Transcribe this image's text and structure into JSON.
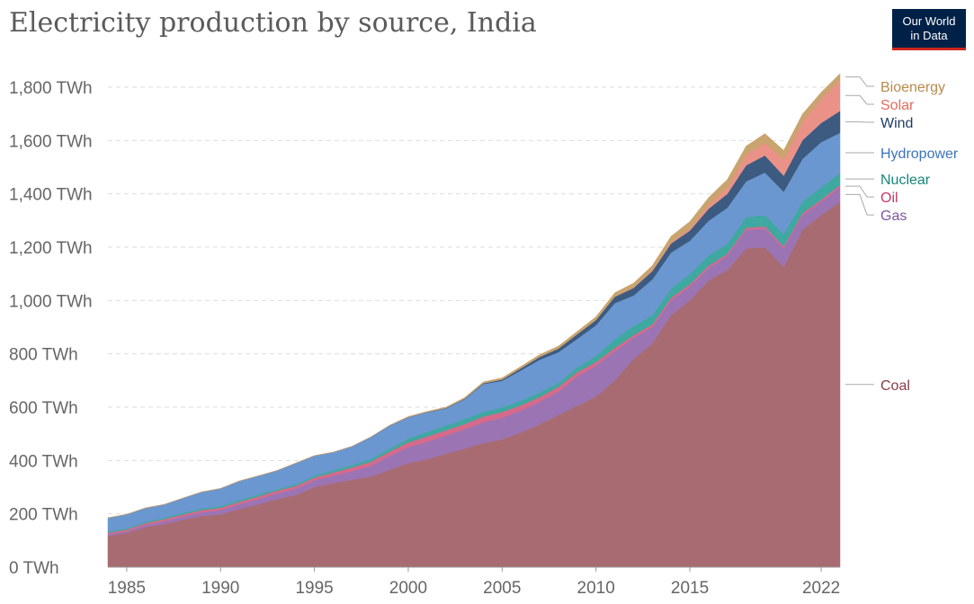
{
  "title": "Electricity production by source, India",
  "logo": {
    "line1": "Our World",
    "line2": "in Data"
  },
  "chart_data": {
    "type": "area",
    "stacked": true,
    "title": "Electricity production by source, India",
    "xlim": [
      1984,
      2023
    ],
    "ylim": [
      0,
      1800
    ],
    "y_unit": "TWh",
    "x_ticks": [
      1985,
      1990,
      1995,
      2000,
      2005,
      2010,
      2015,
      2022
    ],
    "y_ticks": [
      {
        "value": 0,
        "label": "0 TWh"
      },
      {
        "value": 200,
        "label": "200 TWh"
      },
      {
        "value": 400,
        "label": "400 TWh"
      },
      {
        "value": 600,
        "label": "600 TWh"
      },
      {
        "value": 800,
        "label": "800 TWh"
      },
      {
        "value": 1000,
        "label": "1,000 TWh"
      },
      {
        "value": 1200,
        "label": "1,200 TWh"
      },
      {
        "value": 1400,
        "label": "1,400 TWh"
      },
      {
        "value": 1600,
        "label": "1,600 TWh"
      },
      {
        "value": 1800,
        "label": "1,800 TWh"
      }
    ],
    "grid": true,
    "legend_placement": "right",
    "x": [
      1984,
      1985,
      1986,
      1987,
      1988,
      1989,
      1990,
      1991,
      1992,
      1993,
      1994,
      1995,
      1996,
      1997,
      1998,
      1999,
      2000,
      2001,
      2002,
      2003,
      2004,
      2005,
      2006,
      2007,
      2008,
      2009,
      2010,
      2011,
      2012,
      2013,
      2014,
      2015,
      2016,
      2017,
      2018,
      2019,
      2020,
      2021,
      2022,
      2023
    ],
    "series": [
      {
        "name": "Coal",
        "color": "#a86b72",
        "values": [
          118,
          128,
          150,
          162,
          178,
          192,
          198,
          218,
          235,
          255,
          270,
          300,
          315,
          328,
          340,
          365,
          390,
          405,
          425,
          445,
          465,
          480,
          505,
          535,
          570,
          605,
          640,
          700,
          780,
          840,
          945,
          1000,
          1075,
          1115,
          1195,
          1200,
          1125,
          1265,
          1320,
          1370
        ]
      },
      {
        "name": "Gas",
        "color": "#9b74b4",
        "values": [
          5,
          6,
          8,
          10,
          12,
          14,
          16,
          18,
          20,
          22,
          24,
          26,
          28,
          32,
          40,
          52,
          60,
          65,
          68,
          72,
          78,
          80,
          82,
          85,
          88,
          110,
          115,
          110,
          80,
          60,
          55,
          52,
          48,
          52,
          70,
          70,
          70,
          55,
          50,
          55
        ]
      },
      {
        "name": "Oil",
        "color": "#d66a8a",
        "values": [
          6,
          7,
          7,
          8,
          8,
          8,
          9,
          9,
          10,
          10,
          10,
          10,
          12,
          14,
          15,
          16,
          18,
          20,
          20,
          20,
          22,
          22,
          20,
          18,
          18,
          16,
          14,
          12,
          10,
          10,
          10,
          9,
          8,
          8,
          8,
          8,
          8,
          8,
          8,
          8
        ]
      },
      {
        "name": "Nuclear",
        "color": "#3fa8a0",
        "values": [
          4,
          5,
          5,
          5,
          6,
          6,
          6,
          6,
          7,
          5,
          6,
          7,
          8,
          9,
          10,
          12,
          14,
          17,
          18,
          18,
          17,
          17,
          17,
          17,
          15,
          18,
          23,
          33,
          34,
          34,
          35,
          38,
          38,
          38,
          39,
          42,
          45,
          43,
          46,
          46
        ]
      },
      {
        "name": "Hydropower",
        "color": "#6a97cf",
        "values": [
          52,
          52,
          52,
          50,
          55,
          62,
          66,
          72,
          70,
          70,
          80,
          75,
          68,
          70,
          82,
          85,
          80,
          74,
          64,
          75,
          105,
          100,
          114,
          123,
          115,
          107,
          115,
          135,
          115,
          135,
          135,
          125,
          130,
          135,
          135,
          160,
          160,
          160,
          170,
          150
        ]
      },
      {
        "name": "Wind",
        "color": "#3d5b80",
        "values": [
          0,
          0,
          0,
          0,
          0,
          0,
          0,
          0,
          0,
          0,
          0,
          0,
          0,
          0,
          1,
          1,
          1,
          1,
          2,
          2,
          3,
          5,
          8,
          11,
          14,
          18,
          20,
          24,
          28,
          31,
          34,
          38,
          45,
          52,
          60,
          64,
          60,
          70,
          72,
          82
        ]
      },
      {
        "name": "Solar",
        "color": "#ea9287",
        "values": [
          0,
          0,
          0,
          0,
          0,
          0,
          0,
          0,
          0,
          0,
          0,
          0,
          0,
          0,
          0,
          0,
          0,
          0,
          0,
          0,
          0,
          0,
          0,
          0,
          0,
          0,
          0,
          1,
          2,
          3,
          5,
          8,
          14,
          24,
          40,
          48,
          60,
          68,
          90,
          115
        ]
      },
      {
        "name": "Bioenergy",
        "color": "#c9a46e",
        "values": [
          0,
          0,
          0,
          0,
          0,
          0,
          0,
          0,
          0,
          0,
          0,
          0,
          0,
          0,
          0,
          1,
          2,
          2,
          3,
          4,
          5,
          6,
          7,
          8,
          9,
          10,
          12,
          14,
          16,
          18,
          22,
          26,
          28,
          30,
          32,
          34,
          35,
          30,
          25,
          25
        ]
      }
    ]
  }
}
